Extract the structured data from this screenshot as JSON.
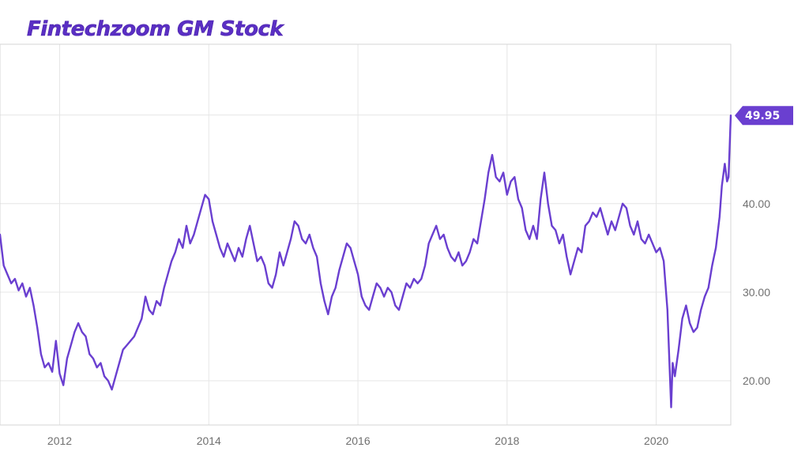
{
  "chart_data": {
    "type": "line",
    "title": "Fintechzoom GM Stock",
    "xlabel": "",
    "ylabel": "",
    "x_range": [
      2011.2,
      2021.0
    ],
    "ylim": [
      15,
      58
    ],
    "x_ticks": [
      {
        "value": 2012,
        "label": "2012"
      },
      {
        "value": 2014,
        "label": "2014"
      },
      {
        "value": 2016,
        "label": "2016"
      },
      {
        "value": 2018,
        "label": "2018"
      },
      {
        "value": 2020,
        "label": "2020"
      }
    ],
    "y_ticks": [
      {
        "value": 20,
        "label": "20.00"
      },
      {
        "value": 30,
        "label": "30.00"
      },
      {
        "value": 40,
        "label": "40.00"
      },
      {
        "value": 50,
        "label": "50.00"
      }
    ],
    "grid": true,
    "line_color": "#6a3fd0",
    "last_value_label": "49.95",
    "series": [
      {
        "name": "",
        "points": [
          [
            2011.2,
            36.5
          ],
          [
            2011.25,
            33.0
          ],
          [
            2011.3,
            32.0
          ],
          [
            2011.35,
            31.0
          ],
          [
            2011.4,
            31.5
          ],
          [
            2011.45,
            30.2
          ],
          [
            2011.5,
            31.0
          ],
          [
            2011.55,
            29.5
          ],
          [
            2011.6,
            30.5
          ],
          [
            2011.65,
            28.5
          ],
          [
            2011.7,
            26.0
          ],
          [
            2011.75,
            23.0
          ],
          [
            2011.8,
            21.5
          ],
          [
            2011.85,
            22.0
          ],
          [
            2011.9,
            21.0
          ],
          [
            2011.95,
            24.5
          ],
          [
            2012.0,
            20.8
          ],
          [
            2012.05,
            19.5
          ],
          [
            2012.1,
            22.5
          ],
          [
            2012.15,
            24.0
          ],
          [
            2012.2,
            25.5
          ],
          [
            2012.25,
            26.5
          ],
          [
            2012.3,
            25.5
          ],
          [
            2012.35,
            25.0
          ],
          [
            2012.4,
            23.0
          ],
          [
            2012.45,
            22.5
          ],
          [
            2012.5,
            21.5
          ],
          [
            2012.55,
            22.0
          ],
          [
            2012.6,
            20.5
          ],
          [
            2012.65,
            20.0
          ],
          [
            2012.7,
            19.0
          ],
          [
            2012.75,
            20.5
          ],
          [
            2012.8,
            22.0
          ],
          [
            2012.85,
            23.5
          ],
          [
            2012.9,
            24.0
          ],
          [
            2012.95,
            24.5
          ],
          [
            2013.0,
            25.0
          ],
          [
            2013.05,
            26.0
          ],
          [
            2013.1,
            27.0
          ],
          [
            2013.15,
            29.5
          ],
          [
            2013.2,
            28.0
          ],
          [
            2013.25,
            27.5
          ],
          [
            2013.3,
            29.0
          ],
          [
            2013.35,
            28.5
          ],
          [
            2013.4,
            30.5
          ],
          [
            2013.45,
            32.0
          ],
          [
            2013.5,
            33.5
          ],
          [
            2013.55,
            34.5
          ],
          [
            2013.6,
            36.0
          ],
          [
            2013.65,
            35.0
          ],
          [
            2013.7,
            37.5
          ],
          [
            2013.75,
            35.5
          ],
          [
            2013.8,
            36.5
          ],
          [
            2013.85,
            38.0
          ],
          [
            2013.9,
            39.5
          ],
          [
            2013.95,
            41.0
          ],
          [
            2014.0,
            40.5
          ],
          [
            2014.05,
            38.0
          ],
          [
            2014.1,
            36.5
          ],
          [
            2014.15,
            35.0
          ],
          [
            2014.2,
            34.0
          ],
          [
            2014.25,
            35.5
          ],
          [
            2014.3,
            34.5
          ],
          [
            2014.35,
            33.5
          ],
          [
            2014.4,
            35.0
          ],
          [
            2014.45,
            34.0
          ],
          [
            2014.5,
            36.0
          ],
          [
            2014.55,
            37.5
          ],
          [
            2014.6,
            35.5
          ],
          [
            2014.65,
            33.5
          ],
          [
            2014.7,
            34.0
          ],
          [
            2014.75,
            33.0
          ],
          [
            2014.8,
            31.0
          ],
          [
            2014.85,
            30.5
          ],
          [
            2014.9,
            32.0
          ],
          [
            2014.95,
            34.5
          ],
          [
            2015.0,
            33.0
          ],
          [
            2015.05,
            34.5
          ],
          [
            2015.1,
            36.0
          ],
          [
            2015.15,
            38.0
          ],
          [
            2015.2,
            37.5
          ],
          [
            2015.25,
            36.0
          ],
          [
            2015.3,
            35.5
          ],
          [
            2015.35,
            36.5
          ],
          [
            2015.4,
            35.0
          ],
          [
            2015.45,
            34.0
          ],
          [
            2015.5,
            31.0
          ],
          [
            2015.55,
            29.0
          ],
          [
            2015.6,
            27.5
          ],
          [
            2015.65,
            29.5
          ],
          [
            2015.7,
            30.5
          ],
          [
            2015.75,
            32.5
          ],
          [
            2015.8,
            34.0
          ],
          [
            2015.85,
            35.5
          ],
          [
            2015.9,
            35.0
          ],
          [
            2015.95,
            33.5
          ],
          [
            2016.0,
            32.0
          ],
          [
            2016.05,
            29.5
          ],
          [
            2016.1,
            28.5
          ],
          [
            2016.15,
            28.0
          ],
          [
            2016.2,
            29.5
          ],
          [
            2016.25,
            31.0
          ],
          [
            2016.3,
            30.5
          ],
          [
            2016.35,
            29.5
          ],
          [
            2016.4,
            30.5
          ],
          [
            2016.45,
            30.0
          ],
          [
            2016.5,
            28.5
          ],
          [
            2016.55,
            28.0
          ],
          [
            2016.6,
            29.5
          ],
          [
            2016.65,
            31.0
          ],
          [
            2016.7,
            30.5
          ],
          [
            2016.75,
            31.5
          ],
          [
            2016.8,
            31.0
          ],
          [
            2016.85,
            31.5
          ],
          [
            2016.9,
            33.0
          ],
          [
            2016.95,
            35.5
          ],
          [
            2017.0,
            36.5
          ],
          [
            2017.05,
            37.5
          ],
          [
            2017.1,
            36.0
          ],
          [
            2017.15,
            36.5
          ],
          [
            2017.2,
            35.0
          ],
          [
            2017.25,
            34.0
          ],
          [
            2017.3,
            33.5
          ],
          [
            2017.35,
            34.5
          ],
          [
            2017.4,
            33.0
          ],
          [
            2017.45,
            33.5
          ],
          [
            2017.5,
            34.5
          ],
          [
            2017.55,
            36.0
          ],
          [
            2017.6,
            35.5
          ],
          [
            2017.65,
            38.0
          ],
          [
            2017.7,
            40.5
          ],
          [
            2017.75,
            43.5
          ],
          [
            2017.8,
            45.5
          ],
          [
            2017.85,
            43.0
          ],
          [
            2017.9,
            42.5
          ],
          [
            2017.95,
            43.5
          ],
          [
            2018.0,
            41.0
          ],
          [
            2018.05,
            42.5
          ],
          [
            2018.1,
            43.0
          ],
          [
            2018.15,
            40.5
          ],
          [
            2018.2,
            39.5
          ],
          [
            2018.25,
            37.0
          ],
          [
            2018.3,
            36.0
          ],
          [
            2018.35,
            37.5
          ],
          [
            2018.4,
            36.0
          ],
          [
            2018.45,
            40.5
          ],
          [
            2018.5,
            43.5
          ],
          [
            2018.55,
            40.0
          ],
          [
            2018.6,
            37.5
          ],
          [
            2018.65,
            37.0
          ],
          [
            2018.7,
            35.5
          ],
          [
            2018.75,
            36.5
          ],
          [
            2018.8,
            34.0
          ],
          [
            2018.85,
            32.0
          ],
          [
            2018.9,
            33.5
          ],
          [
            2018.95,
            35.0
          ],
          [
            2019.0,
            34.5
          ],
          [
            2019.05,
            37.5
          ],
          [
            2019.1,
            38.0
          ],
          [
            2019.15,
            39.0
          ],
          [
            2019.2,
            38.5
          ],
          [
            2019.25,
            39.5
          ],
          [
            2019.3,
            38.0
          ],
          [
            2019.35,
            36.5
          ],
          [
            2019.4,
            38.0
          ],
          [
            2019.45,
            37.0
          ],
          [
            2019.5,
            38.5
          ],
          [
            2019.55,
            40.0
          ],
          [
            2019.6,
            39.5
          ],
          [
            2019.65,
            37.5
          ],
          [
            2019.7,
            36.5
          ],
          [
            2019.75,
            38.0
          ],
          [
            2019.8,
            36.0
          ],
          [
            2019.85,
            35.5
          ],
          [
            2019.9,
            36.5
          ],
          [
            2019.95,
            35.5
          ],
          [
            2020.0,
            34.5
          ],
          [
            2020.05,
            35.0
          ],
          [
            2020.1,
            33.5
          ],
          [
            2020.15,
            28.0
          ],
          [
            2020.2,
            17.0
          ],
          [
            2020.22,
            22.0
          ],
          [
            2020.25,
            20.5
          ],
          [
            2020.3,
            23.5
          ],
          [
            2020.35,
            27.0
          ],
          [
            2020.4,
            28.5
          ],
          [
            2020.45,
            26.5
          ],
          [
            2020.5,
            25.5
          ],
          [
            2020.55,
            26.0
          ],
          [
            2020.6,
            28.0
          ],
          [
            2020.65,
            29.5
          ],
          [
            2020.7,
            30.5
          ],
          [
            2020.75,
            33.0
          ],
          [
            2020.8,
            35.0
          ],
          [
            2020.85,
            38.5
          ],
          [
            2020.88,
            42.0
          ],
          [
            2020.92,
            44.5
          ],
          [
            2020.95,
            42.5
          ],
          [
            2020.97,
            43.0
          ],
          [
            2021.0,
            49.95
          ]
        ]
      }
    ]
  }
}
